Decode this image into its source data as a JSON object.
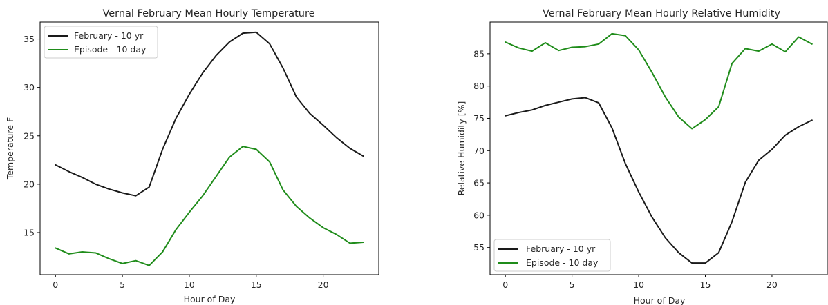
{
  "chart_data": [
    {
      "type": "line",
      "title": "Vernal February Mean Hourly Temperature",
      "xlabel": "Hour of Day",
      "ylabel": "Temperature F",
      "xlim": [
        -1.15,
        24.15
      ],
      "ylim": [
        10.65,
        36.75
      ],
      "xticks": [
        0,
        5,
        10,
        15,
        20
      ],
      "yticks": [
        15,
        20,
        25,
        30,
        35
      ],
      "grid": false,
      "legend_position": "top-left",
      "x": [
        0,
        1,
        2,
        3,
        4,
        5,
        6,
        7,
        8,
        9,
        10,
        11,
        12,
        13,
        14,
        15,
        16,
        17,
        18,
        19,
        20,
        21,
        22,
        23
      ],
      "series": [
        {
          "name": "February - 10 yr",
          "color": "#1a1a1a",
          "values": [
            22.0,
            21.3,
            20.7,
            20.0,
            19.5,
            19.1,
            18.8,
            19.7,
            23.6,
            26.8,
            29.3,
            31.5,
            33.3,
            34.7,
            35.6,
            35.7,
            34.5,
            32.0,
            29.0,
            27.3,
            26.1,
            24.8,
            23.7,
            22.9
          ]
        },
        {
          "name": "Episode - 10 day",
          "color": "#1f8c1a",
          "values": [
            13.4,
            12.8,
            13.0,
            12.9,
            12.3,
            11.8,
            12.1,
            11.6,
            13.0,
            15.3,
            17.1,
            18.8,
            20.8,
            22.8,
            23.9,
            23.6,
            22.3,
            19.4,
            17.7,
            16.5,
            15.5,
            14.8,
            13.9,
            14.0
          ]
        }
      ]
    },
    {
      "type": "line",
      "title": "Vernal February Mean Hourly Relative Humidity",
      "xlabel": "Hour of Day",
      "ylabel": "Relative Humidity [%]",
      "xlim": [
        -1.15,
        24.15
      ],
      "ylim": [
        50.8,
        89.9
      ],
      "xticks": [
        0,
        5,
        10,
        15,
        20
      ],
      "yticks": [
        55,
        60,
        65,
        70,
        75,
        80,
        85
      ],
      "grid": false,
      "legend_position": "bottom-left",
      "x": [
        0,
        1,
        2,
        3,
        4,
        5,
        6,
        7,
        8,
        9,
        10,
        11,
        12,
        13,
        14,
        15,
        16,
        17,
        18,
        19,
        20,
        21,
        22,
        23
      ],
      "series": [
        {
          "name": "February - 10 yr",
          "color": "#1a1a1a",
          "values": [
            75.4,
            75.9,
            76.3,
            77.0,
            77.5,
            78.0,
            78.2,
            77.4,
            73.5,
            68.0,
            63.6,
            59.7,
            56.5,
            54.2,
            52.6,
            52.6,
            54.2,
            59.0,
            65.1,
            68.5,
            70.2,
            72.4,
            73.7,
            74.7
          ]
        },
        {
          "name": "Episode - 10 day",
          "color": "#1f8c1a",
          "values": [
            86.8,
            85.9,
            85.4,
            86.7,
            85.5,
            86.0,
            86.1,
            86.5,
            88.1,
            87.8,
            85.6,
            82.1,
            78.3,
            75.2,
            73.4,
            74.8,
            76.8,
            83.5,
            85.8,
            85.4,
            86.5,
            85.3,
            87.6,
            86.5
          ]
        }
      ]
    }
  ]
}
